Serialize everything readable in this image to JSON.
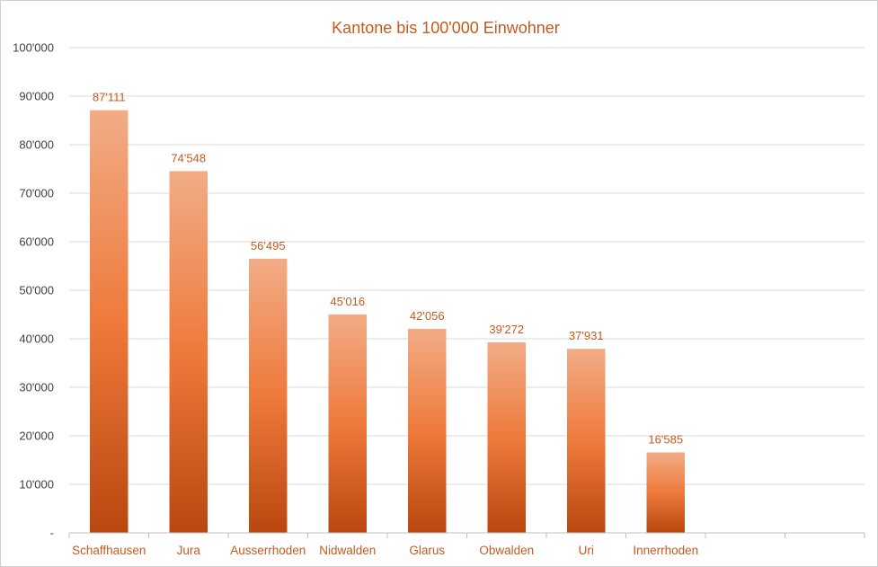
{
  "chart_data": {
    "type": "bar",
    "title": "Kantone bis 100'000 Einwohner",
    "categories": [
      "Schaffhausen",
      "Jura",
      "Ausserrhoden",
      "Nidwalden",
      "Glarus",
      "Obwalden",
      "Uri",
      "Innerrhoden",
      "",
      ""
    ],
    "values": [
      87111,
      74548,
      56495,
      45016,
      42056,
      39272,
      37931,
      16585,
      null,
      null
    ],
    "data_labels": [
      "87'111",
      "74'548",
      "56'495",
      "45'016",
      "42'056",
      "39'272",
      "37'931",
      "16'585",
      "",
      ""
    ],
    "xlabel": "",
    "ylabel": "",
    "ylim": [
      0,
      100000
    ],
    "yticks": [
      0,
      10000,
      20000,
      30000,
      40000,
      50000,
      60000,
      70000,
      80000,
      90000,
      100000
    ],
    "ytick_labels": [
      "-",
      "10'000",
      "20'000",
      "30'000",
      "40'000",
      "50'000",
      "60'000",
      "70'000",
      "80'000",
      "90'000",
      "100'000"
    ],
    "grid": true,
    "legend": "none",
    "colors": {
      "bar_top": "#f2ac86",
      "bar_mid": "#ee7a3c",
      "bar_bottom": "#b9470f",
      "text_accent": "#c55a1e"
    }
  }
}
